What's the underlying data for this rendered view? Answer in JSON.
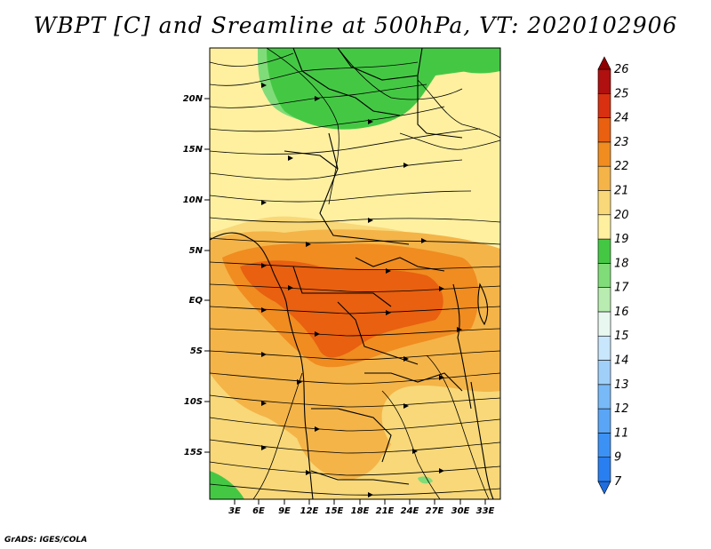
{
  "title": "WBPT [C] and Sreamline at 500hPa, VT: 2020102906",
  "credit": "GrADS: IGES/COLA",
  "lat_labels": [
    "20N",
    "15N",
    "10N",
    "5N",
    "EQ",
    "5S",
    "10S",
    "15S"
  ],
  "lon_labels": [
    "3E",
    "6E",
    "9E",
    "12E",
    "15E",
    "18E",
    "21E",
    "24E",
    "27E",
    "30E",
    "33E"
  ],
  "colorbar": {
    "levels": [
      "7",
      "9",
      "11",
      "12",
      "13",
      "14",
      "15",
      "16",
      "17",
      "18",
      "19",
      "20",
      "21",
      "22",
      "23",
      "24",
      "25",
      "26"
    ],
    "colors": [
      "#1e6ee0",
      "#2a7ff0",
      "#3c91f5",
      "#5aa5f5",
      "#78b9f8",
      "#a0d0fa",
      "#c8e6fc",
      "#e8f8f0",
      "#b8ecb0",
      "#80dc78",
      "#44c844",
      "#fff0a0",
      "#f8d878",
      "#f4b448",
      "#f08c20",
      "#e86010",
      "#d83010",
      "#b01010",
      "#900000"
    ]
  },
  "legend_colors": {
    "wbpt_17": "#44c844",
    "wbpt_18": "#fff0a0",
    "wbpt_19": "#f8d878",
    "wbpt_20": "#f4b448",
    "wbpt_21": "#f08c20",
    "wbpt_22": "#e86010"
  }
}
